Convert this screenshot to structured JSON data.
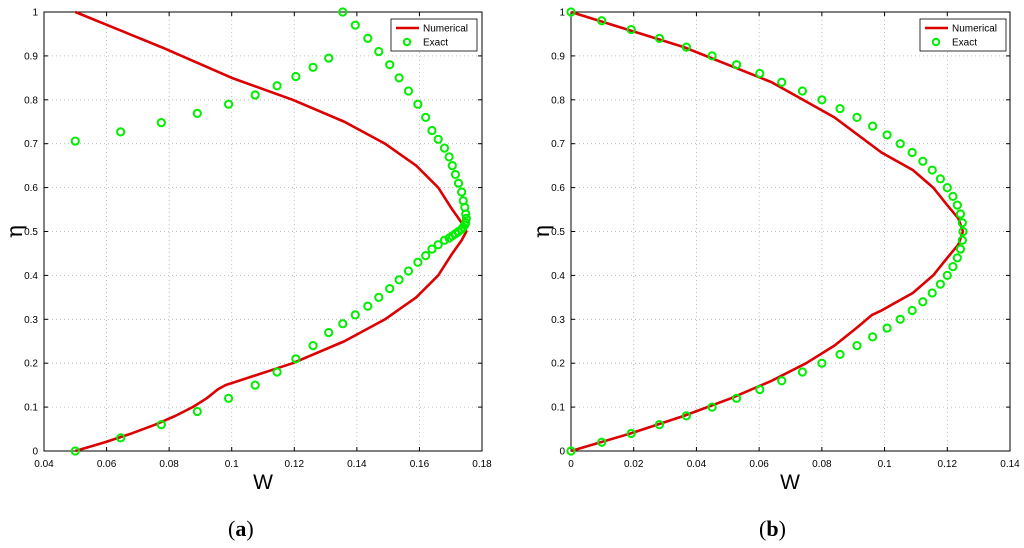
{
  "chart_data": [
    {
      "type": "line",
      "panel_label": "a",
      "xlabel": "W",
      "ylabel": "η",
      "xlim": [
        0.04,
        0.18
      ],
      "ylim": [
        0,
        1
      ],
      "xticks": [
        0.04,
        0.06,
        0.08,
        0.1,
        0.12,
        0.14,
        0.16,
        0.18
      ],
      "xtick_labels": [
        "0.04",
        "0.06",
        "0.08",
        "0.1",
        "0.12",
        "0.14",
        "0.16",
        "0.18"
      ],
      "yticks": [
        0,
        0.1,
        0.2,
        0.3,
        0.4,
        0.5,
        0.6,
        0.7,
        0.8,
        0.9,
        1
      ],
      "ytick_labels": [
        "0",
        "0.1",
        "0.2",
        "0.3",
        "0.4",
        "0.5",
        "0.6",
        "0.7",
        "0.8",
        "0.9",
        "1"
      ],
      "grid": true,
      "legend_position": "top-right",
      "series": [
        {
          "name": "Numerical",
          "style": "line",
          "color": "#dd0000",
          "x": [
            0.05,
            0.0595,
            0.068,
            0.0755,
            0.082,
            0.0875,
            0.092,
            0.0955,
            0.098,
            0.1195,
            0.136,
            0.149,
            0.159,
            0.166,
            0.1705,
            0.1735,
            0.175,
            0.1735,
            0.1705,
            0.166,
            0.159,
            0.149,
            0.136,
            0.1195,
            0.1,
            0.0775,
            0.05
          ],
          "y": [
            0,
            0.02,
            0.04,
            0.06,
            0.08,
            0.1,
            0.12,
            0.14,
            0.15,
            0.2,
            0.25,
            0.3,
            0.35,
            0.4,
            0.45,
            0.48,
            0.5,
            0.52,
            0.55,
            0.6,
            0.65,
            0.7,
            0.75,
            0.8,
            0.85,
            0.92,
            1
          ]
        },
        {
          "name": "Exact",
          "style": "marker",
          "color": "#00ee00",
          "x": [
            0.05,
            0.0645,
            0.0775,
            0.089,
            0.099,
            0.1075,
            0.1145,
            0.1205,
            0.126,
            0.131,
            0.1355,
            0.1395,
            0.1435,
            0.147,
            0.1505,
            0.1535,
            0.1565,
            0.1595,
            0.162,
            0.164,
            0.166,
            0.168,
            0.1695,
            0.1705,
            0.1715,
            0.1725,
            0.1735,
            0.174,
            0.1745,
            0.1748,
            0.175,
            0.1748,
            0.1745,
            0.174,
            0.1735,
            0.1725,
            0.1715,
            0.1705,
            0.1695,
            0.168,
            0.166,
            0.164,
            0.162,
            0.1595,
            0.1565,
            0.1535,
            0.1505,
            0.147,
            0.1435,
            0.1395,
            0.1355,
            0.131,
            0.126,
            0.1205,
            0.1145,
            0.1075,
            0.099,
            0.089,
            0.0775,
            0.0645,
            0.05
          ],
          "y": [
            0,
            0.03,
            0.06,
            0.09,
            0.12,
            0.15,
            0.18,
            0.21,
            0.24,
            0.27,
            0.29,
            0.31,
            0.33,
            0.35,
            0.37,
            0.39,
            0.41,
            0.43,
            0.445,
            0.46,
            0.47,
            0.48,
            0.485,
            0.49,
            0.495,
            0.5,
            0.505,
            0.51,
            0.515,
            0.52,
            0.53,
            0.54,
            0.555,
            0.57,
            0.59,
            0.61,
            0.63,
            0.65,
            0.67,
            0.69,
            0.71,
            0.73,
            0.76,
            0.79,
            0.82,
            0.85,
            0.88,
            0.91,
            0.94,
            0.97,
            1,
            0.895,
            0.874,
            0.853,
            0.832,
            0.811,
            0.79,
            0.769,
            0.748,
            0.727,
            0.706
          ]
        }
      ]
    },
    {
      "type": "line",
      "panel_label": "b",
      "xlabel": "W",
      "ylabel": "η",
      "xlim": [
        0,
        0.14
      ],
      "ylim": [
        0,
        1
      ],
      "xticks": [
        0,
        0.02,
        0.04,
        0.06,
        0.08,
        0.1,
        0.12,
        0.14
      ],
      "xtick_labels": [
        "0",
        "0.02",
        "0.04",
        "0.06",
        "0.08",
        "0.1",
        "0.12",
        "0.14"
      ],
      "yticks": [
        0,
        0.1,
        0.2,
        0.3,
        0.4,
        0.5,
        0.6,
        0.7,
        0.8,
        0.9,
        1
      ],
      "ytick_labels": [
        "0",
        "0.1",
        "0.2",
        "0.3",
        "0.4",
        "0.5",
        "0.6",
        "0.7",
        "0.8",
        "0.9",
        "1"
      ],
      "grid": true,
      "legend_position": "top-right",
      "series": [
        {
          "name": "Numerical",
          "style": "line",
          "color": "#dd0000",
          "x": [
            0,
            0.019,
            0.036,
            0.051,
            0.064,
            0.075,
            0.084,
            0.091,
            0.096,
            0.099,
            0.109,
            0.1155,
            0.12,
            0.1235,
            0.125,
            0.1235,
            0.12,
            0.1155,
            0.109,
            0.099,
            0.084,
            0.064,
            0.036,
            0
          ],
          "y": [
            0,
            0.04,
            0.08,
            0.12,
            0.16,
            0.2,
            0.24,
            0.28,
            0.31,
            0.32,
            0.36,
            0.4,
            0.44,
            0.47,
            0.5,
            0.53,
            0.56,
            0.6,
            0.64,
            0.68,
            0.76,
            0.84,
            0.92,
            1
          ]
        },
        {
          "name": "Exact",
          "style": "marker",
          "color": "#00ee00",
          "x": [
            0,
            0.0098,
            0.0192,
            0.0282,
            0.0368,
            0.045,
            0.0528,
            0.0602,
            0.0672,
            0.0738,
            0.08,
            0.0858,
            0.0912,
            0.0962,
            0.1008,
            0.105,
            0.1088,
            0.1122,
            0.1152,
            0.1178,
            0.12,
            0.1218,
            0.1232,
            0.1242,
            0.1248,
            0.125,
            0.1248,
            0.1242,
            0.1232,
            0.1218,
            0.12,
            0.1178,
            0.1152,
            0.1122,
            0.1088,
            0.105,
            0.1008,
            0.0962,
            0.0912,
            0.0858,
            0.08,
            0.0738,
            0.0672,
            0.0602,
            0.0528,
            0.045,
            0.0368,
            0.0282,
            0.0192,
            0.0098,
            0
          ],
          "y": [
            0,
            0.02,
            0.04,
            0.06,
            0.08,
            0.1,
            0.12,
            0.14,
            0.16,
            0.18,
            0.2,
            0.22,
            0.24,
            0.26,
            0.28,
            0.3,
            0.32,
            0.34,
            0.36,
            0.38,
            0.4,
            0.42,
            0.44,
            0.46,
            0.48,
            0.5,
            0.52,
            0.54,
            0.56,
            0.58,
            0.6,
            0.62,
            0.64,
            0.66,
            0.68,
            0.7,
            0.72,
            0.74,
            0.76,
            0.78,
            0.8,
            0.82,
            0.84,
            0.86,
            0.88,
            0.9,
            0.92,
            0.94,
            0.96,
            0.98,
            1
          ]
        }
      ]
    }
  ]
}
